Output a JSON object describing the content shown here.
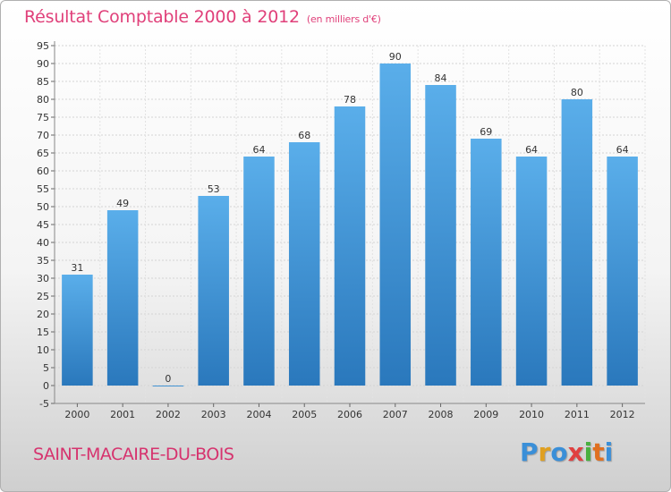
{
  "header": {
    "title": "Résultat Comptable 2000 à 2012",
    "subtitle": "(en milliers d'€)"
  },
  "footer": {
    "city": "SAINT-MACAIRE-DU-BOIS",
    "logo": {
      "letters": [
        "P",
        "r",
        "o",
        "x",
        "i",
        "t",
        "i"
      ],
      "colors": [
        "#3a8fd8",
        "#e0a020",
        "#3a8fd8",
        "#e04040",
        "#4ab040",
        "#e07020",
        "#3a8fd8"
      ]
    }
  },
  "chart_data": {
    "type": "bar",
    "categories": [
      "2000",
      "2001",
      "2002",
      "2003",
      "2004",
      "2005",
      "2006",
      "2007",
      "2008",
      "2009",
      "2010",
      "2011",
      "2012"
    ],
    "values": [
      31,
      49,
      0,
      53,
      64,
      68,
      78,
      90,
      84,
      69,
      64,
      80,
      64
    ],
    "value_labels": [
      "31",
      "49",
      "0",
      "53",
      "64",
      "68",
      "78",
      "90",
      "84",
      "69",
      "64",
      "80",
      "64"
    ],
    "yticks": [
      -5,
      0,
      5,
      10,
      15,
      20,
      25,
      30,
      35,
      40,
      45,
      50,
      55,
      60,
      65,
      70,
      75,
      80,
      85,
      90,
      95
    ],
    "ytick_labels": [
      "-5",
      "0",
      "5",
      "10",
      "15",
      "20",
      "25",
      "30",
      "35",
      "40",
      "45",
      "50",
      "55",
      "60",
      "65",
      "70",
      "75",
      "80",
      "85",
      "90",
      "95"
    ],
    "ylim": [
      -5,
      95
    ],
    "grid": true,
    "bar_color": "#4a9de0"
  }
}
